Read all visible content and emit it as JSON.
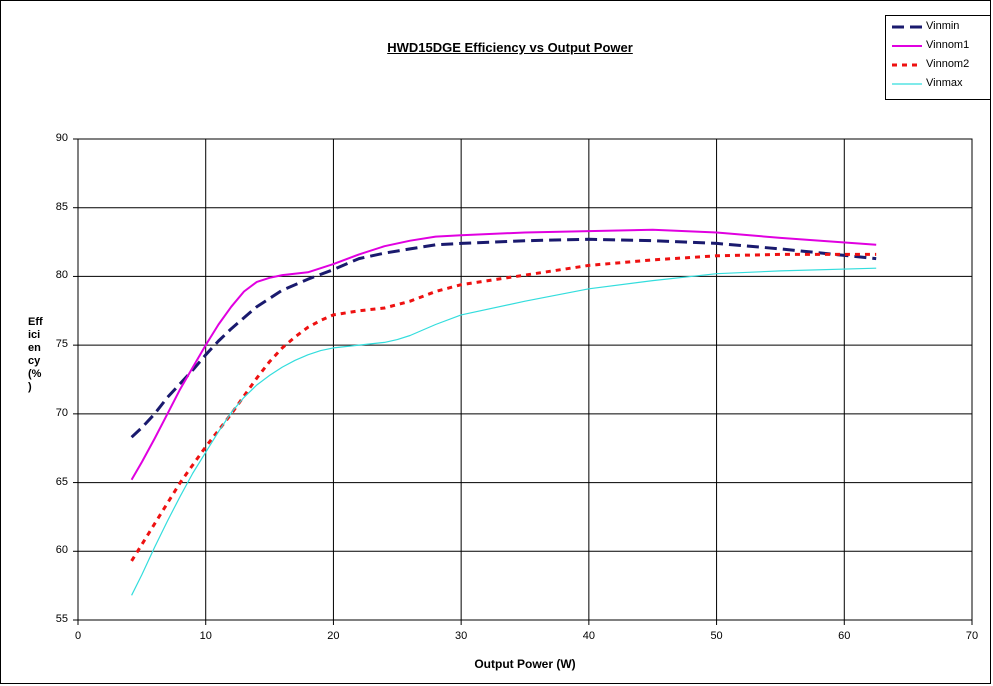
{
  "chart_data": {
    "type": "line",
    "title": "HWD15DGE Efficiency vs Output Power",
    "xlabel": "Output Power (W)",
    "ylabel": "Eff\nici\nen\ncy\n(%\n)",
    "xlim": [
      0,
      70
    ],
    "ylim": [
      55,
      90
    ],
    "xticks": [
      0,
      10,
      20,
      30,
      40,
      50,
      60,
      70
    ],
    "yticks": [
      55,
      60,
      65,
      70,
      75,
      80,
      85,
      90
    ],
    "grid": true,
    "legend_position": "top-right",
    "series": [
      {
        "name": "Vinmin",
        "color": "#1a1a6e",
        "dash": "long-dash",
        "x": [
          4.2,
          5,
          6,
          7,
          8,
          9,
          10,
          11,
          12,
          14,
          16,
          18,
          20,
          22,
          24,
          26,
          28,
          30,
          35,
          40,
          45,
          50,
          55,
          62.5
        ],
        "y": [
          68.3,
          69.0,
          70.0,
          71.2,
          72.2,
          73.2,
          74.3,
          75.3,
          76.2,
          77.8,
          79.0,
          79.8,
          80.5,
          81.3,
          81.7,
          82.0,
          82.3,
          82.4,
          82.6,
          82.7,
          82.6,
          82.4,
          82.0,
          81.3
        ]
      },
      {
        "name": "Vinnom1",
        "color": "#e000e0",
        "dash": "solid",
        "x": [
          4.2,
          5,
          6,
          7,
          8,
          9,
          10,
          11,
          12,
          13,
          14,
          15,
          16,
          18,
          20,
          22,
          24,
          26,
          28,
          30,
          35,
          40,
          45,
          50,
          55,
          62.5
        ],
        "y": [
          65.2,
          66.5,
          68.2,
          70.0,
          71.8,
          73.4,
          75.0,
          76.5,
          77.8,
          78.9,
          79.6,
          79.9,
          80.1,
          80.3,
          80.9,
          81.6,
          82.2,
          82.6,
          82.9,
          83.0,
          83.2,
          83.3,
          83.4,
          83.2,
          82.8,
          82.3
        ]
      },
      {
        "name": "Vinnom2",
        "color": "#ee1111",
        "dash": "short-dash",
        "x": [
          4.2,
          5,
          6,
          7,
          8,
          9,
          10,
          11,
          12,
          13,
          14,
          15,
          16,
          17,
          18,
          19,
          20,
          22,
          24,
          26,
          28,
          30,
          35,
          40,
          45,
          50,
          55,
          62.5
        ],
        "y": [
          59.3,
          60.5,
          62.0,
          63.5,
          65.0,
          66.3,
          67.6,
          68.8,
          70.0,
          71.3,
          72.6,
          73.8,
          74.8,
          75.6,
          76.3,
          76.8,
          77.2,
          77.5,
          77.7,
          78.2,
          78.9,
          79.4,
          80.1,
          80.8,
          81.2,
          81.5,
          81.6,
          81.6
        ]
      },
      {
        "name": "Vinmax",
        "color": "#33dddd",
        "dash": "solid",
        "x": [
          4.2,
          5,
          6,
          7,
          8,
          9,
          10,
          11,
          12,
          13,
          14,
          15,
          16,
          17,
          18,
          19,
          20,
          22,
          24,
          25,
          26,
          28,
          30,
          35,
          40,
          45,
          50,
          55,
          62.5
        ],
        "y": [
          56.8,
          58.3,
          60.3,
          62.2,
          64.0,
          65.7,
          67.2,
          68.7,
          70.1,
          71.2,
          72.1,
          72.8,
          73.4,
          73.9,
          74.3,
          74.6,
          74.8,
          75.0,
          75.2,
          75.4,
          75.7,
          76.5,
          77.2,
          78.2,
          79.1,
          79.7,
          80.2,
          80.4,
          80.6
        ]
      }
    ]
  }
}
